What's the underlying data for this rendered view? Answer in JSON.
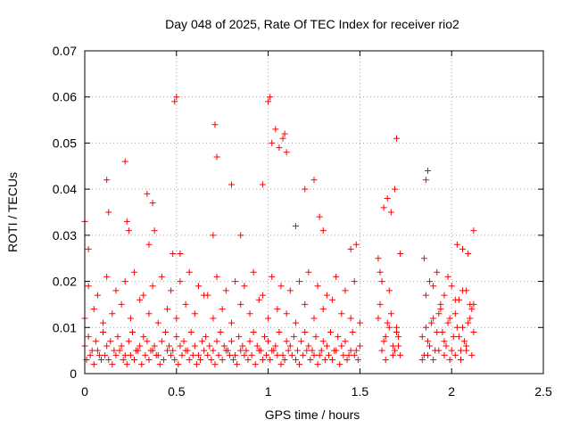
{
  "chart_data": {
    "type": "scatter",
    "title": "Day 048 of 2025, Rate Of TEC Index for receiver rio2",
    "xlabel": "GPS time / hours",
    "ylabel": "ROTI / TECUs",
    "xlim": [
      0,
      2.5
    ],
    "ylim": [
      0,
      0.07
    ],
    "x_ticks": [
      "0",
      "0.5",
      "1",
      "1.5",
      "2",
      "2.5"
    ],
    "y_ticks": [
      "0",
      "0.01",
      "0.02",
      "0.03",
      "0.04",
      "0.05",
      "0.06",
      "0.07"
    ],
    "grid": true,
    "marker": "+",
    "color": "#ff0000",
    "series": [
      {
        "x": [
          0.0,
          0.02,
          0.04,
          0.06,
          0.08,
          0.1,
          0.12,
          0.14,
          0.16,
          0.18,
          0.2,
          0.22,
          0.24,
          0.26,
          0.28,
          0.3,
          0.32,
          0.34,
          0.36,
          0.38,
          0.4,
          0.42,
          0.44,
          0.46,
          0.48,
          0.5,
          0.52,
          0.54,
          0.56,
          0.58,
          0.6,
          0.62,
          0.64,
          0.66,
          0.68,
          0.7,
          0.72,
          0.74,
          0.76,
          0.78,
          0.8,
          0.82,
          0.84,
          0.86,
          0.88,
          0.9,
          0.92,
          0.94,
          0.96,
          0.98,
          1.0,
          1.02,
          1.04,
          1.06,
          1.08,
          1.1,
          1.12,
          1.14,
          1.16,
          1.18,
          1.2,
          1.22,
          1.24,
          1.26,
          1.28,
          1.3,
          1.32,
          1.34,
          1.36,
          1.38,
          1.4,
          1.42,
          1.44,
          1.46,
          1.48,
          1.5,
          0.01,
          0.03,
          0.05,
          0.07,
          0.09,
          0.11,
          0.13,
          0.15,
          0.17,
          0.19,
          0.21,
          0.23,
          0.25,
          0.27,
          0.29,
          0.31,
          0.33,
          0.35,
          0.37,
          0.39,
          0.41,
          0.43,
          0.45,
          0.47,
          0.49,
          0.51,
          0.53,
          0.55,
          0.57,
          0.59,
          0.61,
          0.63,
          0.65,
          0.67,
          0.69,
          0.71,
          0.73,
          0.75,
          0.77,
          0.79,
          0.81,
          0.83,
          0.85,
          0.87,
          0.89,
          0.91,
          0.93,
          0.95,
          0.97,
          0.99,
          1.01,
          1.03,
          1.05,
          1.07,
          1.09,
          1.11,
          1.13,
          1.15,
          1.17,
          1.19,
          1.21,
          1.23,
          1.25,
          1.27,
          1.29,
          1.31,
          1.33,
          1.35,
          1.37,
          1.39,
          1.41,
          1.43,
          1.45,
          1.47,
          1.49,
          0.0,
          0.05,
          0.1,
          0.15,
          0.2,
          0.25,
          0.3,
          0.35,
          0.4,
          0.45,
          0.5,
          0.55,
          0.6,
          0.65,
          0.7,
          0.75,
          0.8,
          0.85,
          0.9,
          0.95,
          1.0,
          1.05,
          1.1,
          1.15,
          1.2,
          1.25,
          1.3,
          1.35,
          1.4,
          1.45,
          1.5,
          0.02,
          0.07,
          0.12,
          0.17,
          0.22,
          0.27,
          0.32,
          0.37,
          0.42,
          0.47,
          0.52,
          0.57,
          0.62,
          0.67,
          0.72,
          0.77,
          0.82,
          0.87,
          0.92,
          0.97,
          1.02,
          1.07,
          1.12,
          1.17,
          1.22,
          1.27,
          1.32,
          1.37,
          1.42,
          1.47,
          0.0,
          0.02,
          0.12,
          0.13,
          0.22,
          0.23,
          0.24,
          0.34,
          0.35,
          0.37,
          0.38,
          0.48,
          0.49,
          0.5,
          0.52,
          0.7,
          0.71,
          0.72,
          0.8,
          0.85,
          0.97,
          1.0,
          1.01,
          1.02,
          1.04,
          1.06,
          1.08,
          1.09,
          1.1,
          1.15,
          1.2,
          1.25,
          1.28,
          1.3,
          1.45,
          1.48,
          1.6,
          1.62,
          1.64,
          1.66,
          1.68,
          1.7,
          1.72,
          1.61,
          1.63,
          1.65,
          1.67,
          1.69,
          1.71,
          1.62,
          1.66,
          1.7,
          1.64,
          1.68,
          1.6,
          1.72,
          1.63,
          1.67,
          1.69,
          1.65,
          1.61,
          1.7,
          1.71,
          1.84,
          1.86,
          1.88,
          1.9,
          1.92,
          1.94,
          1.96,
          1.98,
          2.0,
          2.02,
          2.04,
          2.06,
          2.08,
          2.1,
          2.12,
          1.85,
          1.87,
          1.89,
          1.91,
          1.93,
          1.95,
          1.97,
          1.99,
          2.01,
          2.03,
          2.05,
          2.07,
          2.09,
          2.11,
          1.86,
          1.9,
          1.94,
          1.98,
          2.02,
          2.06,
          2.1,
          1.88,
          1.92,
          1.96,
          2.0,
          2.04,
          2.08,
          2.12,
          1.84,
          1.87,
          1.9,
          1.93,
          1.96,
          1.99,
          2.02,
          2.05,
          2.08,
          2.11,
          1.85,
          1.86,
          1.87,
          2.03,
          2.06,
          2.09,
          2.12
        ],
        "y": [
          0.006,
          0.008,
          0.005,
          0.007,
          0.004,
          0.009,
          0.006,
          0.007,
          0.005,
          0.008,
          0.006,
          0.004,
          0.007,
          0.009,
          0.005,
          0.006,
          0.008,
          0.007,
          0.005,
          0.006,
          0.004,
          0.007,
          0.009,
          0.006,
          0.005,
          0.008,
          0.006,
          0.007,
          0.005,
          0.009,
          0.006,
          0.004,
          0.007,
          0.008,
          0.006,
          0.005,
          0.007,
          0.009,
          0.006,
          0.005,
          0.007,
          0.004,
          0.008,
          0.006,
          0.005,
          0.007,
          0.009,
          0.006,
          0.005,
          0.008,
          0.007,
          0.005,
          0.006,
          0.009,
          0.004,
          0.007,
          0.006,
          0.008,
          0.005,
          0.007,
          0.009,
          0.006,
          0.005,
          0.008,
          0.004,
          0.007,
          0.006,
          0.009,
          0.005,
          0.008,
          0.006,
          0.007,
          0.004,
          0.009,
          0.005,
          0.006,
          0.003,
          0.004,
          0.002,
          0.005,
          0.003,
          0.004,
          0.003,
          0.002,
          0.004,
          0.005,
          0.003,
          0.002,
          0.004,
          0.003,
          0.005,
          0.002,
          0.004,
          0.003,
          0.005,
          0.004,
          0.002,
          0.003,
          0.005,
          0.004,
          0.003,
          0.002,
          0.004,
          0.005,
          0.003,
          0.004,
          0.002,
          0.003,
          0.005,
          0.004,
          0.003,
          0.002,
          0.004,
          0.003,
          0.005,
          0.004,
          0.003,
          0.002,
          0.005,
          0.004,
          0.003,
          0.004,
          0.002,
          0.005,
          0.003,
          0.004,
          0.003,
          0.005,
          0.004,
          0.002,
          0.003,
          0.005,
          0.004,
          0.003,
          0.002,
          0.004,
          0.005,
          0.003,
          0.004,
          0.002,
          0.005,
          0.003,
          0.004,
          0.003,
          0.005,
          0.002,
          0.004,
          0.003,
          0.005,
          0.004,
          0.003,
          0.012,
          0.014,
          0.011,
          0.013,
          0.015,
          0.012,
          0.016,
          0.013,
          0.011,
          0.014,
          0.012,
          0.015,
          0.013,
          0.017,
          0.012,
          0.014,
          0.011,
          0.015,
          0.013,
          0.016,
          0.012,
          0.014,
          0.013,
          0.011,
          0.015,
          0.012,
          0.014,
          0.016,
          0.013,
          0.012,
          0.011,
          0.019,
          0.017,
          0.021,
          0.018,
          0.02,
          0.022,
          0.017,
          0.019,
          0.021,
          0.018,
          0.02,
          0.022,
          0.019,
          0.017,
          0.021,
          0.018,
          0.02,
          0.019,
          0.022,
          0.017,
          0.021,
          0.019,
          0.018,
          0.02,
          0.022,
          0.019,
          0.017,
          0.021,
          0.018,
          0.02,
          0.033,
          0.027,
          0.042,
          0.035,
          0.046,
          0.033,
          0.031,
          0.039,
          0.028,
          0.037,
          0.031,
          0.026,
          0.059,
          0.06,
          0.026,
          0.03,
          0.054,
          0.047,
          0.041,
          0.03,
          0.041,
          0.059,
          0.06,
          0.05,
          0.053,
          0.049,
          0.051,
          0.052,
          0.048,
          0.032,
          0.04,
          0.042,
          0.034,
          0.031,
          0.027,
          0.028,
          0.012,
          0.005,
          0.008,
          0.01,
          0.006,
          0.009,
          0.004,
          0.015,
          0.007,
          0.011,
          0.013,
          0.005,
          0.008,
          0.02,
          0.018,
          0.01,
          0.003,
          0.004,
          0.025,
          0.026,
          0.036,
          0.035,
          0.04,
          0.038,
          0.022,
          0.051,
          0.006,
          0.008,
          0.01,
          0.006,
          0.012,
          0.009,
          0.014,
          0.007,
          0.011,
          0.005,
          0.013,
          0.008,
          0.01,
          0.006,
          0.012,
          0.009,
          0.004,
          0.007,
          0.011,
          0.005,
          0.013,
          0.009,
          0.006,
          0.012,
          0.008,
          0.01,
          0.005,
          0.007,
          0.011,
          0.014,
          0.017,
          0.019,
          0.015,
          0.021,
          0.016,
          0.018,
          0.015,
          0.02,
          0.022,
          0.017,
          0.019,
          0.016,
          0.018,
          0.015,
          0.003,
          0.004,
          0.003,
          0.005,
          0.004,
          0.003,
          0.004,
          0.003,
          0.005,
          0.004,
          0.025,
          0.042,
          0.044,
          0.028,
          0.027,
          0.026,
          0.031
        ]
      }
    ]
  }
}
